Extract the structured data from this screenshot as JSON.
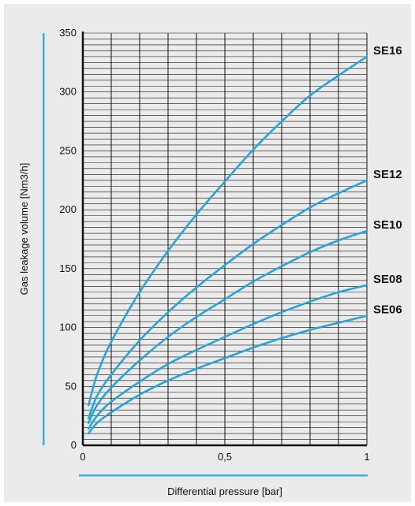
{
  "colors": {
    "curve": "#2aa3d8",
    "accent_bar": "#3bb0e0",
    "grid": "#111111",
    "panel": "#ebebeb"
  },
  "chart_data": {
    "type": "line",
    "xlabel": "Differential pressure  [bar]",
    "ylabel": "Gas leakage volume [Nm3/h]",
    "xlim": [
      0,
      1
    ],
    "ylim": [
      0,
      350
    ],
    "x_ticks": [
      {
        "value": 0,
        "label": "0"
      },
      {
        "value": 0.5,
        "label": "0,5"
      },
      {
        "value": 1,
        "label": "1"
      }
    ],
    "y_ticks": [
      {
        "value": 0,
        "label": "0"
      },
      {
        "value": 50,
        "label": "50"
      },
      {
        "value": 100,
        "label": "100"
      },
      {
        "value": 150,
        "label": "150"
      },
      {
        "value": 200,
        "label": "200"
      },
      {
        "value": 250,
        "label": "250"
      },
      {
        "value": 300,
        "label": "300"
      },
      {
        "value": 350,
        "label": "350"
      }
    ],
    "grid": true,
    "x": [
      0.02,
      0.05,
      0.1,
      0.2,
      0.3,
      0.4,
      0.5,
      0.6,
      0.7,
      0.8,
      0.9,
      1.0
    ],
    "series": [
      {
        "name": "SE16",
        "values": [
          34,
          60,
          88,
          130,
          165,
          196,
          224,
          251,
          275,
          297,
          314,
          330
        ]
      },
      {
        "name": "SE12",
        "values": [
          23,
          42,
          60,
          89,
          113,
          134,
          153,
          171,
          187,
          202,
          214,
          225
        ]
      },
      {
        "name": "SE10",
        "values": [
          19,
          34,
          49,
          72,
          92,
          109,
          124,
          139,
          152,
          164,
          174,
          182
        ]
      },
      {
        "name": "SE08",
        "values": [
          14,
          25,
          37,
          54,
          69,
          81,
          92,
          103,
          113,
          122,
          130,
          136
        ]
      },
      {
        "name": "SE06",
        "values": [
          10,
          19,
          28,
          43,
          55,
          65,
          74,
          83,
          91,
          98,
          104,
          110
        ]
      }
    ]
  }
}
